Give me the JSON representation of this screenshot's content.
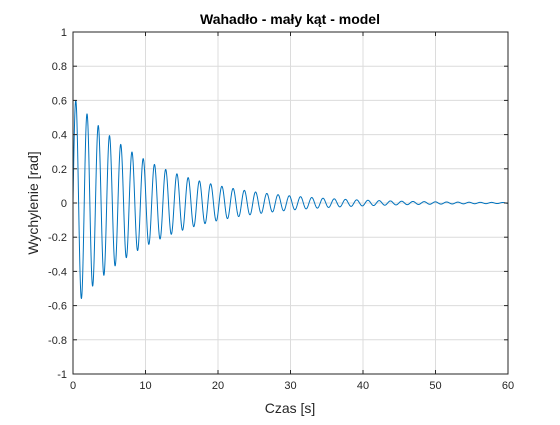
{
  "chart_data": {
    "type": "line",
    "title": "Wahadło - mały kąt - model",
    "xlabel": "Czas [s]",
    "ylabel": "Wychylenie [rad]",
    "xlim": [
      0,
      60
    ],
    "ylim": [
      -1,
      1
    ],
    "xticks": [
      0,
      10,
      20,
      30,
      40,
      50,
      60
    ],
    "yticks": [
      -1,
      -0.8,
      -0.6,
      -0.4,
      -0.2,
      0,
      0.2,
      0.4,
      0.6,
      0.8,
      1
    ],
    "xtick_labels": [
      "0",
      "10",
      "20",
      "30",
      "40",
      "50",
      "60"
    ],
    "ytick_labels": [
      "-1",
      "-0.8",
      "-0.6",
      "-0.4",
      "-0.2",
      "0",
      "0.2",
      "0.4",
      "0.6",
      "0.8",
      "1"
    ],
    "grid": true,
    "series": [
      {
        "color": "#0072BD",
        "model": "damped-sine",
        "amplitude": 0.62,
        "decay_rate": 0.09,
        "period_s": 1.55,
        "t_start": 0,
        "t_end": 60,
        "peaks": [
          {
            "x": 0.5,
            "y": 0.59
          },
          {
            "x": 1.3,
            "y": -0.55
          },
          {
            "x": 2.4,
            "y": 0.51
          },
          {
            "x": 5.4,
            "y": 0.39
          },
          {
            "x": 10.1,
            "y": 0.27
          },
          {
            "x": 20.0,
            "y": 0.12
          },
          {
            "x": 30.0,
            "y": 0.05
          },
          {
            "x": 40.0,
            "y": 0.02
          },
          {
            "x": 50.0,
            "y": 0.01
          },
          {
            "x": 60.0,
            "y": 0.0
          }
        ]
      }
    ]
  }
}
